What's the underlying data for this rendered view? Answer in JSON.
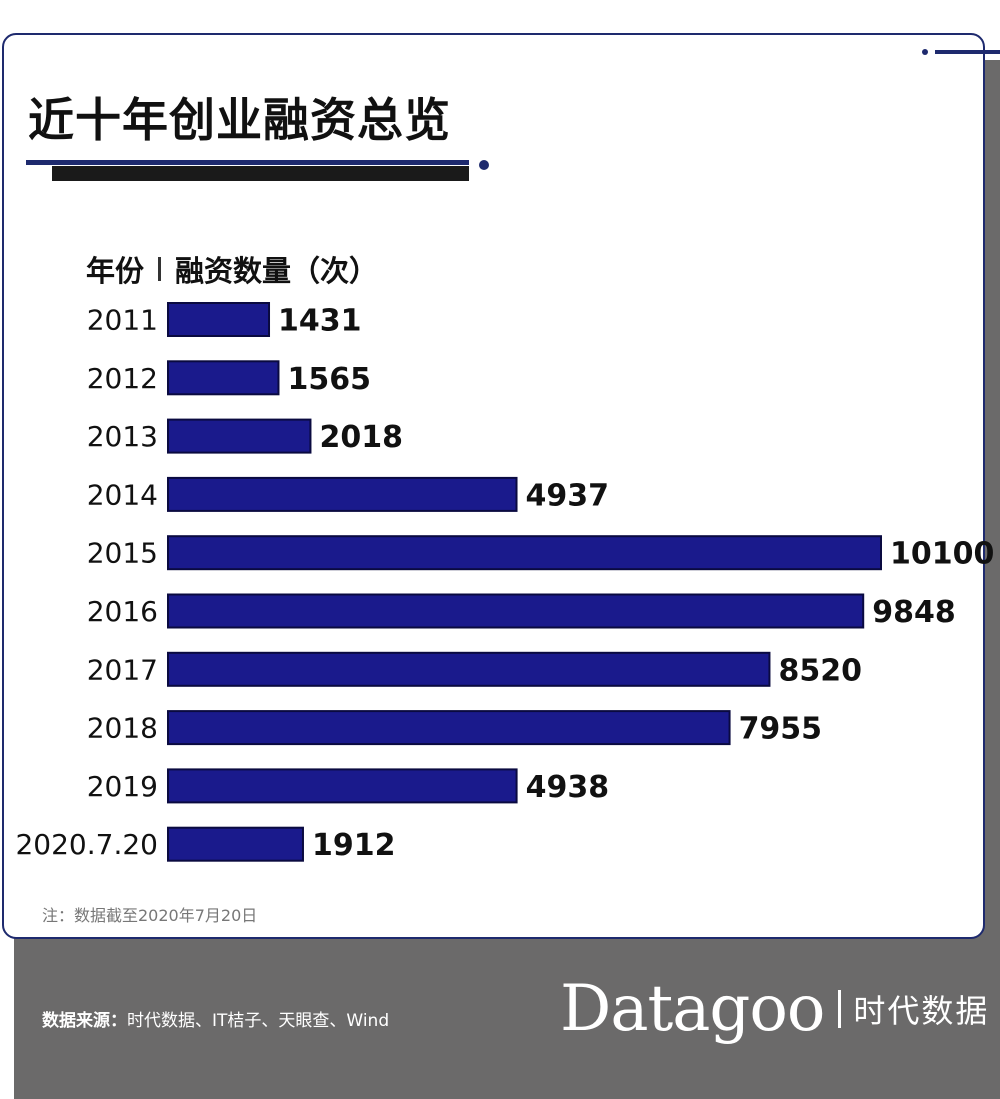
{
  "title": "近十年创业融资总览",
  "header": {
    "year_label": "年份",
    "value_label": "融资数量（次）"
  },
  "chart_data": {
    "type": "bar",
    "orientation": "horizontal",
    "categories": [
      "2011",
      "2012",
      "2013",
      "2014",
      "2015",
      "2016",
      "2017",
      "2018",
      "2019",
      "2020.7.20"
    ],
    "values": [
      1431,
      1565,
      2018,
      4937,
      10100,
      9848,
      8520,
      7955,
      4938,
      1912
    ],
    "bar_color": "#1a1a8c",
    "bar_edge_color": "#0a0a40",
    "data_labels": true,
    "grid": false
  },
  "note": "注：数据截至2020年7月20日",
  "source": {
    "label": "数据来源：",
    "text": "时代数据、IT桔子、天眼查、Wind"
  },
  "brand": {
    "logo": "Datagoo",
    "name": "时代数据"
  }
}
